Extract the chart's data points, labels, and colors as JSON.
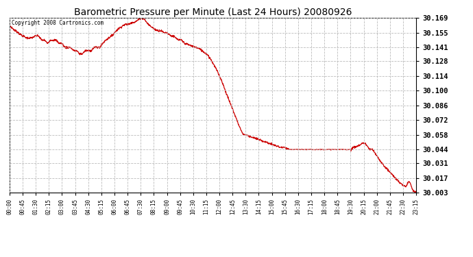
{
  "title": "Barometric Pressure per Minute (Last 24 Hours) 20080926",
  "copyright_text": "Copyright 2008 Cartronics.com",
  "line_color": "#cc0000",
  "background_color": "#ffffff",
  "grid_color": "#bbbbbb",
  "title_fontsize": 10,
  "y_ticks": [
    30.003,
    30.017,
    30.031,
    30.044,
    30.058,
    30.072,
    30.086,
    30.1,
    30.114,
    30.128,
    30.141,
    30.155,
    30.169
  ],
  "ylim": [
    30.003,
    30.169
  ],
  "x_tick_labels": [
    "00:00",
    "00:45",
    "01:30",
    "02:15",
    "03:00",
    "03:45",
    "04:30",
    "05:15",
    "06:00",
    "06:45",
    "07:30",
    "08:15",
    "09:00",
    "09:45",
    "10:30",
    "11:15",
    "12:00",
    "12:45",
    "13:30",
    "14:15",
    "15:00",
    "15:45",
    "16:30",
    "17:15",
    "18:00",
    "18:45",
    "19:30",
    "20:15",
    "21:00",
    "21:45",
    "22:30",
    "23:15"
  ],
  "keypoints": [
    [
      0,
      30.162
    ],
    [
      15,
      30.158
    ],
    [
      30,
      30.155
    ],
    [
      45,
      30.152
    ],
    [
      60,
      30.15
    ],
    [
      75,
      30.15
    ],
    [
      90,
      30.152
    ],
    [
      100,
      30.152
    ],
    [
      110,
      30.148
    ],
    [
      120,
      30.148
    ],
    [
      130,
      30.145
    ],
    [
      140,
      30.148
    ],
    [
      150,
      30.148
    ],
    [
      160,
      30.148
    ],
    [
      170,
      30.145
    ],
    [
      180,
      30.145
    ],
    [
      190,
      30.141
    ],
    [
      200,
      30.141
    ],
    [
      210,
      30.141
    ],
    [
      220,
      30.138
    ],
    [
      230,
      30.138
    ],
    [
      240,
      30.135
    ],
    [
      250,
      30.135
    ],
    [
      260,
      30.138
    ],
    [
      270,
      30.138
    ],
    [
      280,
      30.138
    ],
    [
      290,
      30.141
    ],
    [
      300,
      30.141
    ],
    [
      310,
      30.141
    ],
    [
      320,
      30.145
    ],
    [
      330,
      30.148
    ],
    [
      340,
      30.15
    ],
    [
      350,
      30.152
    ],
    [
      360,
      30.155
    ],
    [
      370,
      30.158
    ],
    [
      380,
      30.16
    ],
    [
      390,
      30.162
    ],
    [
      400,
      30.163
    ],
    [
      410,
      30.163
    ],
    [
      420,
      30.165
    ],
    [
      430,
      30.165
    ],
    [
      440,
      30.167
    ],
    [
      450,
      30.169
    ],
    [
      455,
      30.169
    ],
    [
      460,
      30.169
    ],
    [
      465,
      30.167
    ],
    [
      470,
      30.165
    ],
    [
      480,
      30.162
    ],
    [
      490,
      30.16
    ],
    [
      500,
      30.158
    ],
    [
      510,
      30.157
    ],
    [
      520,
      30.157
    ],
    [
      530,
      30.155
    ],
    [
      540,
      30.155
    ],
    [
      550,
      30.153
    ],
    [
      555,
      30.152
    ],
    [
      560,
      30.152
    ],
    [
      570,
      30.15
    ],
    [
      580,
      30.148
    ],
    [
      590,
      30.148
    ],
    [
      600,
      30.145
    ],
    [
      610,
      30.144
    ],
    [
      620,
      30.143
    ],
    [
      630,
      30.142
    ],
    [
      640,
      30.141
    ],
    [
      650,
      30.14
    ],
    [
      660,
      30.138
    ],
    [
      670,
      30.136
    ],
    [
      680,
      30.134
    ],
    [
      690,
      30.13
    ],
    [
      700,
      30.125
    ],
    [
      710,
      30.12
    ],
    [
      720,
      30.114
    ],
    [
      730,
      30.108
    ],
    [
      740,
      30.1
    ],
    [
      750,
      30.093
    ],
    [
      760,
      30.086
    ],
    [
      770,
      30.079
    ],
    [
      780,
      30.072
    ],
    [
      790,
      30.065
    ],
    [
      800,
      30.059
    ],
    [
      810,
      30.058
    ],
    [
      820,
      30.057
    ],
    [
      830,
      30.056
    ],
    [
      840,
      30.055
    ],
    [
      850,
      30.054
    ],
    [
      860,
      30.053
    ],
    [
      870,
      30.052
    ],
    [
      880,
      30.051
    ],
    [
      890,
      30.05
    ],
    [
      900,
      30.049
    ],
    [
      910,
      30.048
    ],
    [
      920,
      30.047
    ],
    [
      930,
      30.046
    ],
    [
      940,
      30.046
    ],
    [
      950,
      30.045
    ],
    [
      960,
      30.044
    ],
    [
      970,
      30.044
    ],
    [
      980,
      30.044
    ],
    [
      990,
      30.044
    ],
    [
      1000,
      30.044
    ],
    [
      1010,
      30.044
    ],
    [
      1020,
      30.044
    ],
    [
      1030,
      30.044
    ],
    [
      1040,
      30.044
    ],
    [
      1050,
      30.044
    ],
    [
      1060,
      30.044
    ],
    [
      1070,
      30.044
    ],
    [
      1080,
      30.044
    ],
    [
      1090,
      30.044
    ],
    [
      1100,
      30.044
    ],
    [
      1110,
      30.044
    ],
    [
      1120,
      30.044
    ],
    [
      1130,
      30.044
    ],
    [
      1140,
      30.044
    ],
    [
      1150,
      30.044
    ],
    [
      1160,
      30.044
    ],
    [
      1170,
      30.044
    ],
    [
      1180,
      30.046
    ],
    [
      1190,
      30.047
    ],
    [
      1200,
      30.048
    ],
    [
      1210,
      30.05
    ],
    [
      1215,
      30.05
    ],
    [
      1220,
      30.05
    ],
    [
      1225,
      30.048
    ],
    [
      1230,
      30.046
    ],
    [
      1235,
      30.044
    ],
    [
      1240,
      30.044
    ],
    [
      1245,
      30.044
    ],
    [
      1250,
      30.042
    ],
    [
      1255,
      30.04
    ],
    [
      1260,
      30.038
    ],
    [
      1270,
      30.034
    ],
    [
      1280,
      30.03
    ],
    [
      1290,
      30.027
    ],
    [
      1300,
      30.024
    ],
    [
      1310,
      30.021
    ],
    [
      1320,
      30.018
    ],
    [
      1330,
      30.015
    ],
    [
      1340,
      30.012
    ],
    [
      1350,
      30.01
    ],
    [
      1360,
      30.009
    ],
    [
      1365,
      30.012
    ],
    [
      1370,
      30.014
    ],
    [
      1375,
      30.012
    ],
    [
      1380,
      30.008
    ],
    [
      1385,
      30.005
    ],
    [
      1390,
      30.004
    ],
    [
      1395,
      30.003
    ]
  ]
}
